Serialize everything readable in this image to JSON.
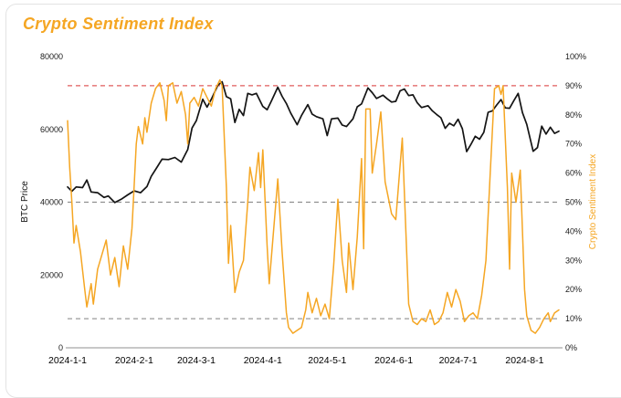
{
  "header": {
    "title": "Crypto Sentiment Index"
  },
  "colors": {
    "title": "#F5A623",
    "btc_line": "#141414",
    "sentiment_line": "#F5A623",
    "ref_red": "#E05C5C",
    "ref_grey": "#8F8F8F",
    "axis_line": "#B5B5B5",
    "tick_text": "#1A1A1A"
  },
  "chart_data": {
    "type": "line",
    "title": "Crypto Sentiment Index",
    "grid": false,
    "left_axis": {
      "label": "BTC Price",
      "range": [
        0,
        80000
      ],
      "ticks": [
        0,
        20000,
        40000,
        60000,
        80000
      ]
    },
    "right_axis": {
      "label": "Crypto Sentiment Index",
      "range": [
        0,
        100
      ],
      "ticks": [
        "0%",
        "10%",
        "20%",
        "30%",
        "40%",
        "50%",
        "60%",
        "70%",
        "80%",
        "90%",
        "100%"
      ]
    },
    "x_axis": {
      "domain": [
        "2024-01-01",
        "2024-08-17"
      ],
      "tick_labels": [
        "2024-1-1",
        "2024-2-1",
        "2024-3-1",
        "2024-4-1",
        "2024-5-1",
        "2024-6-1",
        "2024-7-1",
        "2024-8-1"
      ],
      "tick_dates": [
        "2024-01-01",
        "2024-02-01",
        "2024-03-01",
        "2024-04-01",
        "2024-05-01",
        "2024-06-01",
        "2024-07-01",
        "2024-08-01"
      ]
    },
    "reference_lines": [
      {
        "axis": "right",
        "value": 90,
        "color": "#E05C5C",
        "style": "dashed",
        "name": "greed-threshold-90"
      },
      {
        "axis": "right",
        "value": 50,
        "color": "#8F8F8F",
        "style": "dashed",
        "name": "neutral-threshold-50"
      },
      {
        "axis": "right",
        "value": 10,
        "color": "#9A9A9A",
        "style": "dashed",
        "name": "fear-threshold-10"
      }
    ],
    "series": [
      {
        "id": "btc",
        "name": "BTC Price",
        "axis": "left",
        "color": "#141414",
        "points": [
          [
            "2024-01-01",
            44200
          ],
          [
            "2024-01-03",
            43000
          ],
          [
            "2024-01-05",
            44200
          ],
          [
            "2024-01-08",
            44000
          ],
          [
            "2024-01-10",
            46100
          ],
          [
            "2024-01-12",
            42800
          ],
          [
            "2024-01-15",
            42600
          ],
          [
            "2024-01-18",
            41300
          ],
          [
            "2024-01-20",
            41700
          ],
          [
            "2024-01-23",
            39900
          ],
          [
            "2024-01-26",
            40800
          ],
          [
            "2024-01-29",
            42000
          ],
          [
            "2024-02-01",
            43100
          ],
          [
            "2024-02-04",
            42600
          ],
          [
            "2024-02-07",
            44300
          ],
          [
            "2024-02-09",
            47100
          ],
          [
            "2024-02-12",
            49900
          ],
          [
            "2024-02-14",
            51800
          ],
          [
            "2024-02-17",
            51700
          ],
          [
            "2024-02-20",
            52300
          ],
          [
            "2024-02-23",
            51000
          ],
          [
            "2024-02-26",
            54500
          ],
          [
            "2024-02-28",
            60400
          ],
          [
            "2024-03-01",
            62400
          ],
          [
            "2024-03-04",
            68300
          ],
          [
            "2024-03-06",
            66100
          ],
          [
            "2024-03-08",
            68300
          ],
          [
            "2024-03-11",
            72100
          ],
          [
            "2024-03-13",
            73100
          ],
          [
            "2024-03-15",
            69000
          ],
          [
            "2024-03-17",
            68400
          ],
          [
            "2024-03-19",
            61900
          ],
          [
            "2024-03-21",
            65500
          ],
          [
            "2024-03-23",
            63800
          ],
          [
            "2024-03-25",
            69900
          ],
          [
            "2024-03-27",
            69500
          ],
          [
            "2024-03-29",
            69900
          ],
          [
            "2024-04-01",
            66300
          ],
          [
            "2024-04-03",
            65400
          ],
          [
            "2024-04-05",
            67800
          ],
          [
            "2024-04-08",
            71600
          ],
          [
            "2024-04-10",
            69100
          ],
          [
            "2024-04-12",
            67100
          ],
          [
            "2024-04-14",
            64500
          ],
          [
            "2024-04-17",
            61300
          ],
          [
            "2024-04-19",
            63800
          ],
          [
            "2024-04-22",
            66800
          ],
          [
            "2024-04-24",
            64200
          ],
          [
            "2024-04-26",
            63500
          ],
          [
            "2024-04-29",
            62900
          ],
          [
            "2024-05-01",
            58300
          ],
          [
            "2024-05-03",
            62900
          ],
          [
            "2024-05-06",
            63100
          ],
          [
            "2024-05-08",
            61200
          ],
          [
            "2024-05-10",
            60800
          ],
          [
            "2024-05-13",
            62900
          ],
          [
            "2024-05-15",
            66200
          ],
          [
            "2024-05-17",
            67000
          ],
          [
            "2024-05-20",
            71400
          ],
          [
            "2024-05-22",
            70100
          ],
          [
            "2024-05-24",
            68500
          ],
          [
            "2024-05-27",
            69400
          ],
          [
            "2024-05-29",
            68400
          ],
          [
            "2024-05-31",
            67500
          ],
          [
            "2024-06-02",
            67700
          ],
          [
            "2024-06-04",
            70600
          ],
          [
            "2024-06-06",
            71100
          ],
          [
            "2024-06-08",
            69300
          ],
          [
            "2024-06-10",
            69500
          ],
          [
            "2024-06-12",
            67300
          ],
          [
            "2024-06-14",
            66000
          ],
          [
            "2024-06-17",
            66500
          ],
          [
            "2024-06-19",
            65100
          ],
          [
            "2024-06-21",
            64100
          ],
          [
            "2024-06-23",
            63200
          ],
          [
            "2024-06-25",
            60300
          ],
          [
            "2024-06-27",
            61700
          ],
          [
            "2024-06-29",
            61000
          ],
          [
            "2024-07-01",
            62800
          ],
          [
            "2024-07-03",
            60200
          ],
          [
            "2024-07-05",
            53900
          ],
          [
            "2024-07-07",
            55900
          ],
          [
            "2024-07-09",
            58100
          ],
          [
            "2024-07-11",
            57300
          ],
          [
            "2024-07-13",
            59200
          ],
          [
            "2024-07-15",
            64700
          ],
          [
            "2024-07-17",
            65100
          ],
          [
            "2024-07-19",
            66700
          ],
          [
            "2024-07-21",
            68200
          ],
          [
            "2024-07-23",
            65900
          ],
          [
            "2024-07-25",
            65800
          ],
          [
            "2024-07-27",
            67900
          ],
          [
            "2024-07-29",
            69900
          ],
          [
            "2024-07-31",
            64600
          ],
          [
            "2024-08-02",
            61400
          ],
          [
            "2024-08-05",
            54000
          ],
          [
            "2024-08-07",
            55000
          ],
          [
            "2024-08-09",
            60900
          ],
          [
            "2024-08-11",
            58700
          ],
          [
            "2024-08-13",
            60600
          ],
          [
            "2024-08-15",
            58900
          ],
          [
            "2024-08-17",
            59500
          ]
        ]
      },
      {
        "id": "sentiment",
        "name": "Crypto Sentiment Index",
        "axis": "right",
        "color": "#F5A623",
        "points": [
          [
            "2024-01-01",
            78
          ],
          [
            "2024-01-02",
            62
          ],
          [
            "2024-01-03",
            50
          ],
          [
            "2024-01-04",
            36
          ],
          [
            "2024-01-05",
            42
          ],
          [
            "2024-01-07",
            33
          ],
          [
            "2024-01-09",
            20
          ],
          [
            "2024-01-10",
            14
          ],
          [
            "2024-01-12",
            22
          ],
          [
            "2024-01-13",
            15
          ],
          [
            "2024-01-15",
            27
          ],
          [
            "2024-01-17",
            32
          ],
          [
            "2024-01-19",
            37
          ],
          [
            "2024-01-21",
            25
          ],
          [
            "2024-01-23",
            31
          ],
          [
            "2024-01-25",
            21
          ],
          [
            "2024-01-27",
            35
          ],
          [
            "2024-01-29",
            27
          ],
          [
            "2024-01-31",
            41
          ],
          [
            "2024-02-01",
            55
          ],
          [
            "2024-02-02",
            70
          ],
          [
            "2024-02-03",
            76
          ],
          [
            "2024-02-05",
            70
          ],
          [
            "2024-02-06",
            79
          ],
          [
            "2024-02-07",
            74
          ],
          [
            "2024-02-09",
            84
          ],
          [
            "2024-02-11",
            89
          ],
          [
            "2024-02-13",
            91
          ],
          [
            "2024-02-15",
            85
          ],
          [
            "2024-02-16",
            78
          ],
          [
            "2024-02-17",
            90
          ],
          [
            "2024-02-19",
            91
          ],
          [
            "2024-02-21",
            84
          ],
          [
            "2024-02-23",
            88
          ],
          [
            "2024-02-25",
            80
          ],
          [
            "2024-02-26",
            70
          ],
          [
            "2024-02-27",
            84
          ],
          [
            "2024-02-29",
            86
          ],
          [
            "2024-03-02",
            83
          ],
          [
            "2024-03-04",
            89
          ],
          [
            "2024-03-06",
            86
          ],
          [
            "2024-03-08",
            83
          ],
          [
            "2024-03-10",
            89
          ],
          [
            "2024-03-12",
            92
          ],
          [
            "2024-03-13",
            90
          ],
          [
            "2024-03-15",
            55
          ],
          [
            "2024-03-16",
            29
          ],
          [
            "2024-03-17",
            42
          ],
          [
            "2024-03-19",
            19
          ],
          [
            "2024-03-21",
            26
          ],
          [
            "2024-03-23",
            30
          ],
          [
            "2024-03-25",
            50
          ],
          [
            "2024-03-26",
            62
          ],
          [
            "2024-03-28",
            54
          ],
          [
            "2024-03-30",
            67
          ],
          [
            "2024-03-31",
            55
          ],
          [
            "2024-04-01",
            68
          ],
          [
            "2024-04-03",
            35
          ],
          [
            "2024-04-04",
            22
          ],
          [
            "2024-04-06",
            40
          ],
          [
            "2024-04-08",
            58
          ],
          [
            "2024-04-10",
            33
          ],
          [
            "2024-04-12",
            12
          ],
          [
            "2024-04-13",
            7
          ],
          [
            "2024-04-15",
            5
          ],
          [
            "2024-04-17",
            6
          ],
          [
            "2024-04-19",
            7
          ],
          [
            "2024-04-21",
            13
          ],
          [
            "2024-04-22",
            19
          ],
          [
            "2024-04-24",
            12
          ],
          [
            "2024-04-26",
            17
          ],
          [
            "2024-04-28",
            11
          ],
          [
            "2024-04-30",
            15
          ],
          [
            "2024-05-02",
            10
          ],
          [
            "2024-05-04",
            28
          ],
          [
            "2024-05-06",
            51
          ],
          [
            "2024-05-08",
            30
          ],
          [
            "2024-05-10",
            19
          ],
          [
            "2024-05-11",
            36
          ],
          [
            "2024-05-13",
            20
          ],
          [
            "2024-05-15",
            38
          ],
          [
            "2024-05-17",
            65
          ],
          [
            "2024-05-18",
            34
          ],
          [
            "2024-05-19",
            82
          ],
          [
            "2024-05-21",
            82
          ],
          [
            "2024-05-22",
            60
          ],
          [
            "2024-05-24",
            70
          ],
          [
            "2024-05-26",
            81
          ],
          [
            "2024-05-28",
            57
          ],
          [
            "2024-05-31",
            46
          ],
          [
            "2024-06-02",
            44
          ],
          [
            "2024-06-05",
            72
          ],
          [
            "2024-06-08",
            15
          ],
          [
            "2024-06-10",
            9
          ],
          [
            "2024-06-12",
            8
          ],
          [
            "2024-06-14",
            10
          ],
          [
            "2024-06-16",
            9
          ],
          [
            "2024-06-18",
            13
          ],
          [
            "2024-06-20",
            8
          ],
          [
            "2024-06-22",
            9
          ],
          [
            "2024-06-24",
            12
          ],
          [
            "2024-06-26",
            19
          ],
          [
            "2024-06-28",
            14
          ],
          [
            "2024-06-30",
            20
          ],
          [
            "2024-07-02",
            16
          ],
          [
            "2024-07-04",
            9
          ],
          [
            "2024-07-06",
            11
          ],
          [
            "2024-07-08",
            12
          ],
          [
            "2024-07-10",
            10
          ],
          [
            "2024-07-12",
            18
          ],
          [
            "2024-07-14",
            30
          ],
          [
            "2024-07-16",
            60
          ],
          [
            "2024-07-18",
            89
          ],
          [
            "2024-07-20",
            90
          ],
          [
            "2024-07-21",
            87
          ],
          [
            "2024-07-22",
            90
          ],
          [
            "2024-07-24",
            55
          ],
          [
            "2024-07-25",
            27
          ],
          [
            "2024-07-26",
            60
          ],
          [
            "2024-07-28",
            50
          ],
          [
            "2024-07-30",
            61
          ],
          [
            "2024-08-01",
            20
          ],
          [
            "2024-08-02",
            11
          ],
          [
            "2024-08-04",
            6
          ],
          [
            "2024-08-06",
            5
          ],
          [
            "2024-08-08",
            7
          ],
          [
            "2024-08-10",
            10
          ],
          [
            "2024-08-12",
            12
          ],
          [
            "2024-08-13",
            9
          ],
          [
            "2024-08-15",
            12
          ],
          [
            "2024-08-17",
            13
          ]
        ]
      }
    ]
  }
}
